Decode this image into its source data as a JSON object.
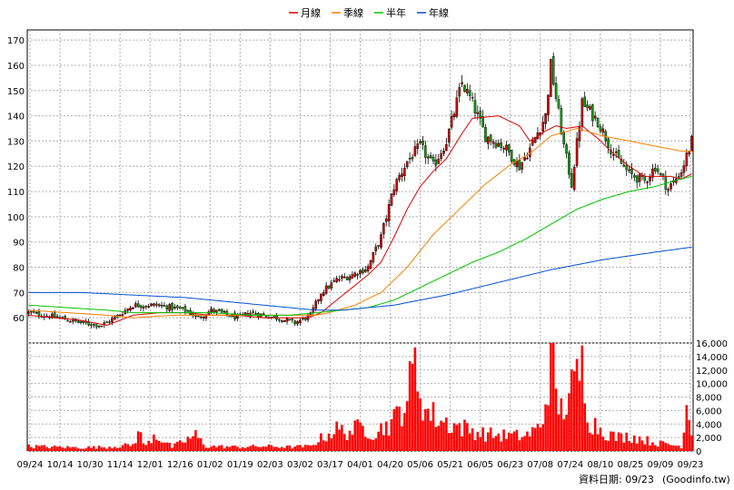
{
  "chart_data": [
    {
      "type": "candlestick",
      "title": "",
      "xlabel": "",
      "ylabel": "",
      "ylim": [
        50,
        174
      ],
      "yticks": [
        60,
        70,
        80,
        90,
        100,
        110,
        120,
        130,
        140,
        150,
        160,
        170
      ],
      "grid": true,
      "legend_position": "top-center",
      "date_labels": [
        "09/24",
        "10/14",
        "10/30",
        "11/14",
        "12/01",
        "12/16",
        "01/02",
        "01/19",
        "02/03",
        "03/02",
        "03/17",
        "04/01",
        "04/20",
        "05/06",
        "05/21",
        "06/05",
        "06/23",
        "07/08",
        "07/24",
        "08/10",
        "08/25",
        "09/09",
        "09/23"
      ],
      "legend": [
        {
          "label": "月線",
          "color": "#e00000"
        },
        {
          "label": "季線",
          "color": "#ff7f00"
        },
        {
          "label": "半年",
          "color": "#00c000"
        },
        {
          "label": "年線",
          "color": "#0050d0"
        }
      ],
      "up_color": "#d00000",
      "down_color": "#00a000",
      "price_anchors": [
        [
          0,
          62
        ],
        [
          12,
          60
        ],
        [
          20,
          58
        ],
        [
          28,
          57
        ],
        [
          33,
          60
        ],
        [
          40,
          65
        ],
        [
          50,
          65
        ],
        [
          60,
          63
        ],
        [
          65,
          60
        ],
        [
          70,
          63
        ],
        [
          80,
          60
        ],
        [
          85,
          62
        ],
        [
          95,
          60
        ],
        [
          102,
          58
        ],
        [
          108,
          61
        ],
        [
          112,
          70
        ],
        [
          118,
          75
        ],
        [
          124,
          77
        ],
        [
          130,
          80
        ],
        [
          135,
          92
        ],
        [
          140,
          112
        ],
        [
          145,
          122
        ],
        [
          150,
          128
        ],
        [
          155,
          120
        ],
        [
          160,
          130
        ],
        [
          166,
          153
        ],
        [
          170,
          145
        ],
        [
          175,
          132
        ],
        [
          182,
          128
        ],
        [
          188,
          120
        ],
        [
          192,
          127
        ],
        [
          198,
          140
        ],
        [
          200,
          160
        ],
        [
          205,
          128
        ],
        [
          208,
          113
        ],
        [
          212,
          145
        ],
        [
          218,
          138
        ],
        [
          224,
          125
        ],
        [
          230,
          117
        ],
        [
          236,
          114
        ],
        [
          240,
          120
        ],
        [
          245,
          111
        ],
        [
          250,
          118
        ],
        [
          254,
          130
        ]
      ],
      "ma_series": [
        {
          "name": "月線",
          "color": "#e00000",
          "points": [
            [
              0,
              61
            ],
            [
              10,
              60
            ],
            [
              20,
              59
            ],
            [
              30,
              57
            ],
            [
              35,
              59
            ],
            [
              40,
              61
            ],
            [
              50,
              62
            ],
            [
              60,
              62
            ],
            [
              70,
              61
            ],
            [
              80,
              61
            ],
            [
              90,
              60
            ],
            [
              100,
              60
            ],
            [
              107,
              60
            ],
            [
              112,
              62
            ],
            [
              118,
              67
            ],
            [
              124,
              72
            ],
            [
              130,
              77
            ],
            [
              135,
              82
            ],
            [
              140,
              92
            ],
            [
              145,
              103
            ],
            [
              150,
              112
            ],
            [
              155,
              118
            ],
            [
              160,
              123
            ],
            [
              166,
              133
            ],
            [
              170,
              139
            ],
            [
              180,
              140
            ],
            [
              188,
              136
            ],
            [
              192,
              130
            ],
            [
              198,
              134
            ],
            [
              202,
              136
            ],
            [
              206,
              135
            ],
            [
              212,
              136
            ],
            [
              218,
              131
            ],
            [
              224,
              125
            ],
            [
              230,
              120
            ],
            [
              236,
              116
            ],
            [
              240,
              116
            ],
            [
              246,
              116
            ],
            [
              250,
              115
            ],
            [
              254,
              117
            ]
          ]
        },
        {
          "name": "季線",
          "color": "#ff7f00",
          "points": [
            [
              0,
              63
            ],
            [
              15,
              62
            ],
            [
              30,
              61
            ],
            [
              40,
              60
            ],
            [
              55,
              61
            ],
            [
              70,
              61
            ],
            [
              85,
              61
            ],
            [
              100,
              61
            ],
            [
              110,
              61
            ],
            [
              115,
              62
            ],
            [
              125,
              65
            ],
            [
              135,
              70
            ],
            [
              145,
              80
            ],
            [
              155,
              93
            ],
            [
              165,
              103
            ],
            [
              175,
              113
            ],
            [
              185,
              121
            ],
            [
              192,
              125
            ],
            [
              200,
              132
            ],
            [
              210,
              135
            ],
            [
              220,
              132
            ],
            [
              230,
              130
            ],
            [
              240,
              128
            ],
            [
              250,
              126
            ],
            [
              254,
              126
            ]
          ]
        },
        {
          "name": "半年",
          "color": "#00c000",
          "points": [
            [
              0,
              65
            ],
            [
              15,
              64
            ],
            [
              30,
              63
            ],
            [
              40,
              62
            ],
            [
              55,
              62
            ],
            [
              70,
              62
            ],
            [
              85,
              61
            ],
            [
              100,
              61
            ],
            [
              110,
              62
            ],
            [
              120,
              63
            ],
            [
              130,
              64
            ],
            [
              140,
              67
            ],
            [
              150,
              72
            ],
            [
              160,
              77
            ],
            [
              170,
              82
            ],
            [
              180,
              86
            ],
            [
              190,
              91
            ],
            [
              200,
              97
            ],
            [
              210,
              103
            ],
            [
              220,
              107
            ],
            [
              230,
              110
            ],
            [
              240,
              112
            ],
            [
              250,
              115
            ],
            [
              254,
              116
            ]
          ]
        },
        {
          "name": "年線",
          "color": "#0050d0",
          "points": [
            [
              0,
              70
            ],
            [
              20,
              70
            ],
            [
              40,
              69
            ],
            [
              60,
              68
            ],
            [
              80,
              66
            ],
            [
              100,
              64
            ],
            [
              110,
              63
            ],
            [
              120,
              63
            ],
            [
              140,
              65
            ],
            [
              160,
              69
            ],
            [
              180,
              74
            ],
            [
              200,
              79
            ],
            [
              220,
              83
            ],
            [
              240,
              86
            ],
            [
              254,
              88
            ]
          ]
        }
      ]
    },
    {
      "type": "bar",
      "title": "",
      "ylim": [
        0,
        16000
      ],
      "yticks": [
        "0",
        "2,000",
        "4,000",
        "6,000",
        "8,000",
        "10,000",
        "12,000",
        "14,000",
        "16,000"
      ],
      "color": "#ff0000",
      "volume_anchors": [
        [
          0,
          700
        ],
        [
          10,
          600
        ],
        [
          20,
          500
        ],
        [
          30,
          600
        ],
        [
          40,
          900
        ],
        [
          42,
          2800
        ],
        [
          45,
          700
        ],
        [
          48,
          2500
        ],
        [
          55,
          600
        ],
        [
          64,
          2300
        ],
        [
          68,
          700
        ],
        [
          80,
          600
        ],
        [
          90,
          700
        ],
        [
          100,
          600
        ],
        [
          108,
          700
        ],
        [
          110,
          1400
        ],
        [
          118,
          3200
        ],
        [
          122,
          2800
        ],
        [
          128,
          3600
        ],
        [
          132,
          2600
        ],
        [
          140,
          4500
        ],
        [
          145,
          8000
        ],
        [
          148,
          12500
        ],
        [
          152,
          6000
        ],
        [
          158,
          4500
        ],
        [
          166,
          3500
        ],
        [
          170,
          3000
        ],
        [
          175,
          2500
        ],
        [
          182,
          2300
        ],
        [
          190,
          2200
        ],
        [
          196,
          3500
        ],
        [
          198,
          7200
        ],
        [
          200,
          16200
        ],
        [
          202,
          8000
        ],
        [
          204,
          6000
        ],
        [
          206,
          7500
        ],
        [
          209,
          9500
        ],
        [
          212,
          12500
        ],
        [
          215,
          4500
        ],
        [
          220,
          3000
        ],
        [
          225,
          2000
        ],
        [
          230,
          2200
        ],
        [
          235,
          1800
        ],
        [
          240,
          1200
        ],
        [
          245,
          1000
        ],
        [
          250,
          700
        ],
        [
          252,
          7000
        ],
        [
          254,
          3500
        ]
      ]
    }
  ],
  "footer": {
    "label": "資料日期: 09/23",
    "source": "(Goodinfo.tw)"
  }
}
